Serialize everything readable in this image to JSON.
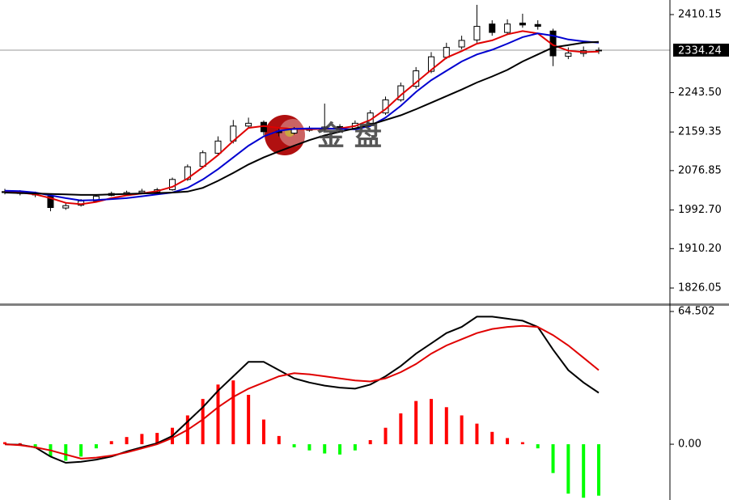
{
  "chart_data": [
    {
      "type": "candlestick",
      "open": [
        2032,
        2030,
        2028,
        2022,
        1997,
        2003,
        2012,
        2024,
        2027,
        2030,
        2031,
        2036,
        2058,
        2086,
        2114,
        2140,
        2172,
        2180,
        2161,
        2157,
        2163,
        2166,
        2171,
        2167,
        2178,
        2200,
        2228,
        2257,
        2289,
        2319,
        2341,
        2356,
        2390,
        2372,
        2392,
        2389,
        2375,
        2321,
        2327,
        2333
      ],
      "high": [
        2038,
        2035,
        2032,
        2025,
        2008,
        2016,
        2026,
        2032,
        2034,
        2038,
        2040,
        2062,
        2090,
        2120,
        2150,
        2185,
        2190,
        2184,
        2168,
        2170,
        2172,
        2220,
        2176,
        2184,
        2206,
        2235,
        2265,
        2298,
        2330,
        2350,
        2365,
        2431,
        2398,
        2400,
        2412,
        2398,
        2380,
        2340,
        2342,
        2340
      ],
      "low": [
        2026,
        2024,
        2020,
        1990,
        1993,
        2000,
        2010,
        2022,
        2025,
        2028,
        2030,
        2034,
        2055,
        2082,
        2110,
        2135,
        2168,
        2152,
        2150,
        2154,
        2160,
        2162,
        2162,
        2164,
        2174,
        2196,
        2224,
        2252,
        2285,
        2315,
        2336,
        2350,
        2365,
        2368,
        2382,
        2378,
        2300,
        2315,
        2320,
        2326
      ],
      "close": [
        2030,
        2028,
        2025,
        1998,
        2002,
        2012,
        2022,
        2028,
        2030,
        2033,
        2036,
        2058,
        2085,
        2115,
        2140,
        2172,
        2178,
        2160,
        2158,
        2165,
        2166,
        2170,
        2168,
        2178,
        2200,
        2228,
        2258,
        2290,
        2320,
        2340,
        2355,
        2385,
        2372,
        2390,
        2388,
        2385,
        2322,
        2328,
        2333,
        2334.24
      ],
      "up_color": "#ffffff",
      "down_color": "#000000",
      "series": [
        {
          "color": "#e00000",
          "values": [
            2032,
            2030,
            2026,
            2018,
            2008,
            2005,
            2010,
            2018,
            2024,
            2028,
            2033,
            2042,
            2060,
            2084,
            2110,
            2140,
            2168,
            2172,
            2168,
            2166,
            2165,
            2166,
            2167,
            2172,
            2185,
            2208,
            2238,
            2265,
            2292,
            2318,
            2332,
            2348,
            2355,
            2368,
            2375,
            2370,
            2345,
            2333,
            2330,
            2331
          ]
        },
        {
          "color": "#0000d0",
          "values": [
            2034,
            2033,
            2030,
            2024,
            2018,
            2013,
            2014,
            2016,
            2018,
            2022,
            2026,
            2030,
            2040,
            2058,
            2080,
            2105,
            2130,
            2150,
            2162,
            2166,
            2167,
            2167,
            2166,
            2165,
            2172,
            2190,
            2215,
            2245,
            2270,
            2290,
            2310,
            2325,
            2335,
            2348,
            2362,
            2370,
            2365,
            2357,
            2353,
            2350
          ]
        },
        {
          "color": "#000000",
          "values": [
            2030,
            2029,
            2028,
            2027,
            2026,
            2025,
            2025,
            2026,
            2027,
            2028,
            2029,
            2030,
            2032,
            2040,
            2055,
            2072,
            2090,
            2105,
            2118,
            2130,
            2142,
            2152,
            2160,
            2167,
            2175,
            2185,
            2195,
            2208,
            2222,
            2236,
            2250,
            2265,
            2278,
            2292,
            2310,
            2325,
            2340,
            2345,
            2350,
            2352
          ]
        }
      ],
      "last_price": 2334.24,
      "ylim": [
        1793.2,
        2441.3
      ],
      "yticks": [
        2410.15,
        {
          "value": 2243.5,
          "label": "2243.50"
        },
        2159.35,
        2076.85,
        {
          "value": 1992.7,
          "label": "1992.70"
        },
        {
          "value": 1910.2,
          "label": "1910.20"
        },
        1826.05
      ],
      "watermark": "金 盘"
    },
    {
      "type": "macd",
      "histogram": [
        1,
        0.5,
        -2,
        -6,
        -8,
        -6,
        -2,
        1.5,
        3.5,
        5,
        5.5,
        8,
        14,
        22,
        29,
        31,
        24,
        12,
        4,
        -1.5,
        -3,
        -4.5,
        -5,
        -3,
        2,
        8,
        15,
        21,
        22,
        18,
        14,
        10,
        6,
        3,
        1,
        -2,
        -14,
        -24,
        -26,
        -25
      ],
      "positive_color": "#ff0000",
      "negative_color": "#00ff00",
      "series": [
        {
          "color": "#000000",
          "values": [
            0,
            -0.3,
            -1.5,
            -6,
            -9,
            -8.5,
            -7.5,
            -6,
            -3.5,
            -1.5,
            0.5,
            4,
            11,
            18,
            26,
            33,
            40,
            40,
            36,
            32,
            30,
            28.5,
            27.5,
            27,
            29,
            33,
            38,
            44,
            49,
            54,
            57,
            62,
            62,
            61,
            60,
            57,
            46,
            36,
            30,
            25
          ]
        },
        {
          "color": "#e00000",
          "values": [
            0,
            -0.5,
            -1.5,
            -3,
            -5,
            -7,
            -6.5,
            -5.5,
            -4,
            -2,
            0,
            3,
            7,
            12,
            18,
            23,
            27,
            30,
            33,
            34.5,
            34,
            33,
            32,
            31,
            30.5,
            32,
            35,
            39,
            44,
            48,
            51,
            54,
            56,
            57,
            57.5,
            57,
            53,
            48,
            42,
            36
          ]
        }
      ],
      "ylim": [
        -27.1,
        67.25
      ],
      "yticks": [
        64.502,
        {
          "value": 0,
          "label": "0.00"
        }
      ]
    }
  ]
}
